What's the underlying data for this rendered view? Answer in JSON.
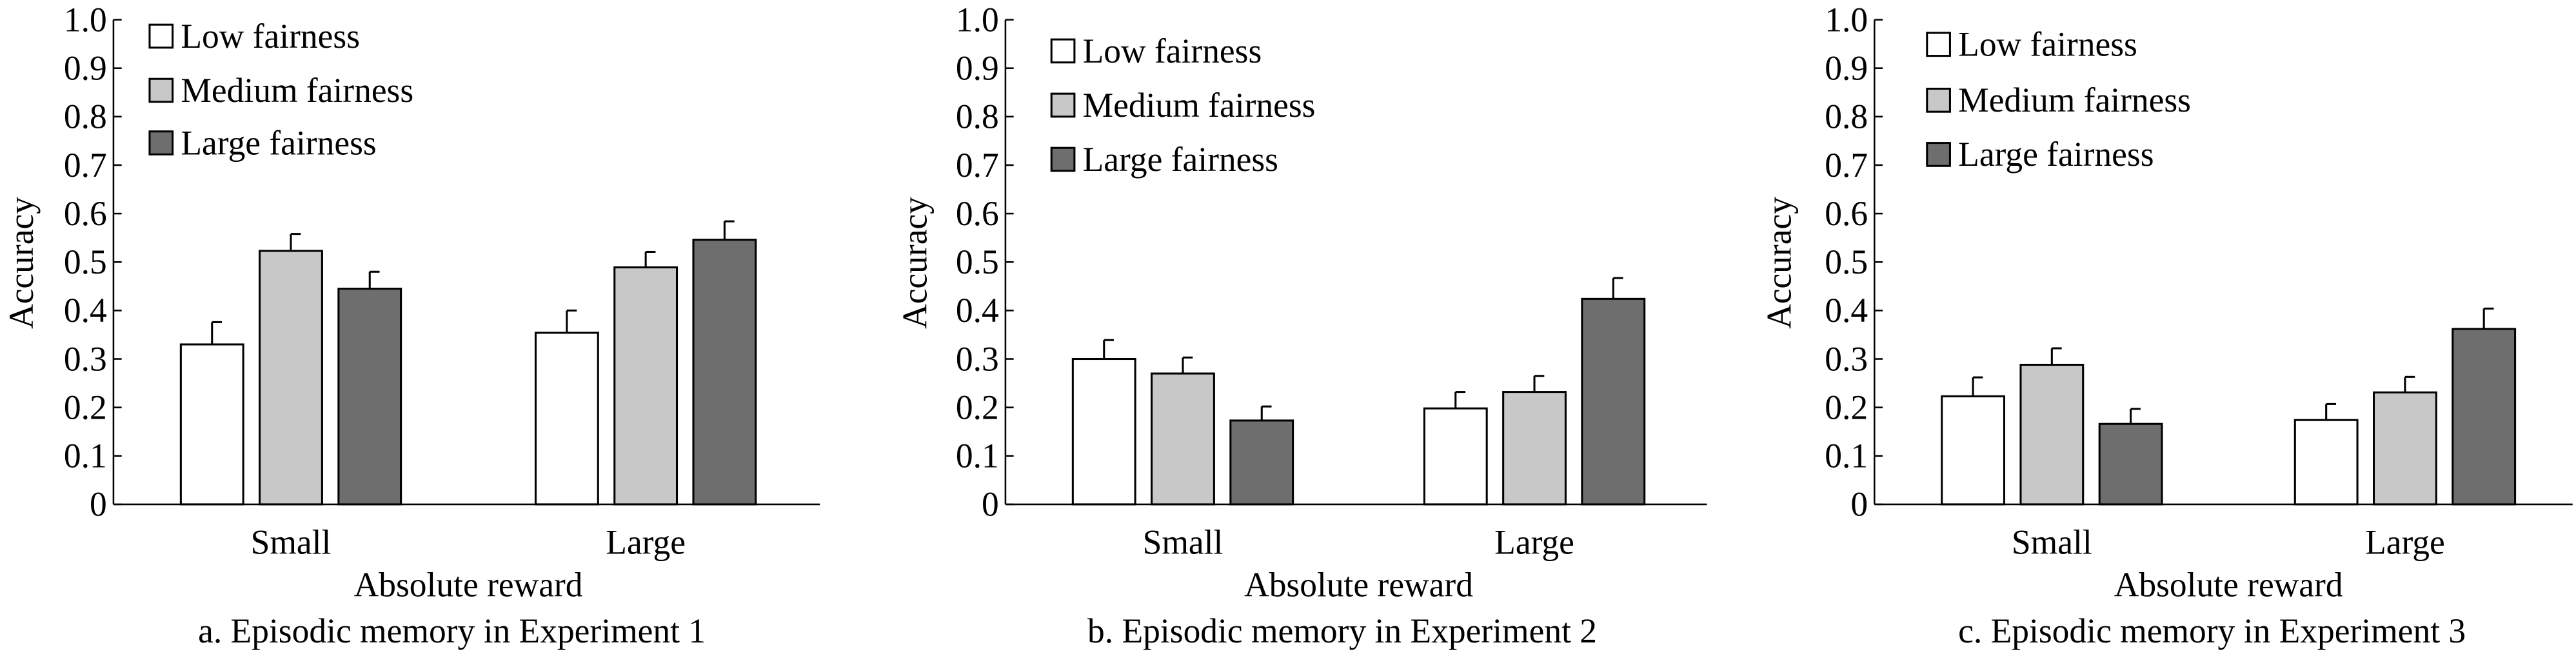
{
  "chart_data": [
    {
      "type": "bar",
      "title": "a. Episodic memory in Experiment 1",
      "xlabel": "Absolute reward",
      "ylabel": "Accuracy",
      "categories": [
        "Small",
        "Large"
      ],
      "ylim": [
        0,
        1.0
      ],
      "yticks": [
        "0",
        "0.1",
        "0.2",
        "0.3",
        "0.4",
        "0.5",
        "0.6",
        "0.7",
        "0.8",
        "0.9",
        "1.0"
      ],
      "legend_position": "top-left",
      "series": [
        {
          "name": "Low fairness",
          "color": "#ffffff",
          "values": [
            0.33,
            0.354
          ],
          "errors": [
            0.046,
            0.046
          ]
        },
        {
          "name": "Medium fairness",
          "color": "#c8c8c8",
          "values": [
            0.523,
            0.489
          ],
          "errors": [
            0.035,
            0.032
          ]
        },
        {
          "name": "Large fairness",
          "color": "#6e6e6e",
          "values": [
            0.445,
            0.546
          ],
          "errors": [
            0.035,
            0.038
          ]
        }
      ]
    },
    {
      "type": "bar",
      "title": "b. Episodic memory in Experiment 2",
      "xlabel": "Absolute reward",
      "ylabel": "Accuracy",
      "categories": [
        "Small",
        "Large"
      ],
      "ylim": [
        0,
        1.0
      ],
      "yticks": [
        "0",
        "0.1",
        "0.2",
        "0.3",
        "0.4",
        "0.5",
        "0.6",
        "0.7",
        "0.8",
        "0.9",
        "1.0"
      ],
      "legend_position": "top-left",
      "series": [
        {
          "name": "Low fairness",
          "color": "#ffffff",
          "values": [
            0.3,
            0.198
          ],
          "errors": [
            0.039,
            0.034
          ]
        },
        {
          "name": "Medium fairness",
          "color": "#c8c8c8",
          "values": [
            0.27,
            0.232
          ],
          "errors": [
            0.033,
            0.033
          ]
        },
        {
          "name": "Large fairness",
          "color": "#6e6e6e",
          "values": [
            0.173,
            0.424
          ],
          "errors": [
            0.029,
            0.043
          ]
        }
      ]
    },
    {
      "type": "bar",
      "title": "c. Episodic memory in Experiment 3",
      "xlabel": "Absolute reward",
      "ylabel": "Accuracy",
      "categories": [
        "Small",
        "Large"
      ],
      "ylim": [
        0,
        1.0
      ],
      "yticks": [
        "0",
        "0.1",
        "0.2",
        "0.3",
        "0.4",
        "0.5",
        "0.6",
        "0.7",
        "0.8",
        "0.9",
        "1.0"
      ],
      "legend_position": "top-left",
      "series": [
        {
          "name": "Low fairness",
          "color": "#ffffff",
          "values": [
            0.223,
            0.174
          ],
          "errors": [
            0.039,
            0.033
          ]
        },
        {
          "name": "Medium fairness",
          "color": "#c8c8c8",
          "values": [
            0.288,
            0.231
          ],
          "errors": [
            0.034,
            0.032
          ]
        },
        {
          "name": "Large fairness",
          "color": "#6e6e6e",
          "values": [
            0.166,
            0.362
          ],
          "errors": [
            0.031,
            0.042
          ]
        }
      ]
    }
  ]
}
